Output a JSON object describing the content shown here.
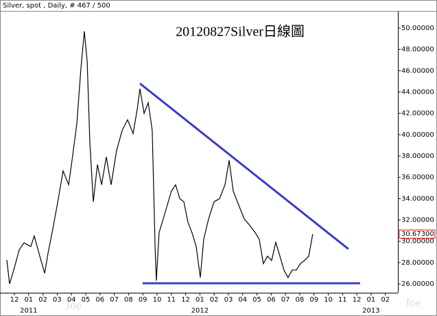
{
  "chart_data": {
    "type": "line",
    "header": "Silver, spot , Daily, # 467 / 500",
    "title": "20120827Silver日線圖",
    "watermark": "Joe",
    "last_label": "30.67300",
    "year_labels": [
      {
        "value": 1,
        "label": "2011"
      },
      {
        "value": 13,
        "label": "2012"
      },
      {
        "value": 25,
        "label": "2013"
      }
    ],
    "x": [
      -0.53,
      -0.34,
      -0.05,
      0.34,
      0.67,
      1.15,
      1.39,
      1.78,
      2.12,
      2.36,
      2.74,
      3.08,
      3.41,
      3.8,
      4.04,
      4.38,
      4.66,
      4.9,
      5.1,
      5.29,
      5.53,
      5.82,
      6.11,
      6.44,
      6.78,
      7.16,
      7.55,
      7.93,
      8.32,
      8.61,
      8.8,
      9.09,
      9.38,
      9.66,
      9.86,
      9.95,
      10.14,
      10.43,
      10.72,
      11.0,
      11.3,
      11.59,
      11.88,
      12.16,
      12.45,
      12.74,
      13.03,
      13.27,
      13.61,
      13.99,
      14.38,
      14.76,
      15.05,
      15.34,
      15.72,
      16.11,
      16.49,
      16.88,
      17.16,
      17.45,
      17.74,
      18.03,
      18.32,
      18.61,
      18.89,
      19.18,
      19.47,
      19.76,
      20.05,
      20.34,
      20.63,
      20.91
    ],
    "series": [
      {
        "color": "#000000",
        "values": [
          28.25,
          26.0,
          27.3,
          29.2,
          29.85,
          29.5,
          30.5,
          28.6,
          27.0,
          28.9,
          31.5,
          34.0,
          36.6,
          35.3,
          37.6,
          41.1,
          46.2,
          49.7,
          46.9,
          39.2,
          33.7,
          37.2,
          35.3,
          37.9,
          35.3,
          38.5,
          40.4,
          41.4,
          40.1,
          42.4,
          44.3,
          42.0,
          43.0,
          40.4,
          29.5,
          26.3,
          30.8,
          32.1,
          33.4,
          34.7,
          35.3,
          34.0,
          33.7,
          31.8,
          30.8,
          29.5,
          26.6,
          30.2,
          32.1,
          33.7,
          34.0,
          35.3,
          37.6,
          34.7,
          33.4,
          32.1,
          31.5,
          30.8,
          30.2,
          27.9,
          28.6,
          28.2,
          29.9,
          28.6,
          27.3,
          26.6,
          27.3,
          27.3,
          27.9,
          28.2,
          28.6,
          30.673
        ]
      }
    ],
    "trendlines": [
      {
        "color": "#3a3ac8",
        "x": [
          8.8,
          23.41
        ],
        "y": [
          44.8,
          29.27
        ]
      },
      {
        "color": "#3a3ac8",
        "x": [
          8.99,
          24.23
        ],
        "y": [
          26.06,
          26.06
        ]
      }
    ],
    "xlim": [
      -0.77,
      26.88
    ],
    "xticks": [
      {
        "value": 0,
        "label": "12"
      },
      {
        "value": 1,
        "label": "01"
      },
      {
        "value": 2,
        "label": "02"
      },
      {
        "value": 3,
        "label": "03"
      },
      {
        "value": 4,
        "label": "04"
      },
      {
        "value": 5,
        "label": "05"
      },
      {
        "value": 6,
        "label": "06"
      },
      {
        "value": 7,
        "label": "07"
      },
      {
        "value": 8,
        "label": "08"
      },
      {
        "value": 9,
        "label": "09"
      },
      {
        "value": 10,
        "label": "10"
      },
      {
        "value": 11,
        "label": "11"
      },
      {
        "value": 12,
        "label": "12"
      },
      {
        "value": 13,
        "label": "01"
      },
      {
        "value": 14,
        "label": "02"
      },
      {
        "value": 15,
        "label": "03"
      },
      {
        "value": 16,
        "label": "04"
      },
      {
        "value": 17,
        "label": "05"
      },
      {
        "value": 18,
        "label": "06"
      },
      {
        "value": 19,
        "label": "07"
      },
      {
        "value": 20,
        "label": "08"
      },
      {
        "value": 21,
        "label": "09"
      },
      {
        "value": 22,
        "label": "10"
      },
      {
        "value": 23,
        "label": "11"
      },
      {
        "value": 24,
        "label": "12"
      },
      {
        "value": 25,
        "label": "01"
      },
      {
        "value": 26,
        "label": "02"
      }
    ],
    "ylim": [
      25.17,
      51.48
    ],
    "yticks": [
      {
        "value": 26,
        "label": "26.00000"
      },
      {
        "value": 28,
        "label": "28.00000"
      },
      {
        "value": 30,
        "label": "30.00000"
      },
      {
        "value": 32,
        "label": "32.00000"
      },
      {
        "value": 34,
        "label": "34.00000"
      },
      {
        "value": 36,
        "label": "36.00000"
      },
      {
        "value": 38,
        "label": "38.00000"
      },
      {
        "value": 40,
        "label": "40.00000"
      },
      {
        "value": 42,
        "label": "42.00000"
      },
      {
        "value": 44,
        "label": "44.00000"
      },
      {
        "value": 46,
        "label": "46.00000"
      },
      {
        "value": 48,
        "label": "48.00000"
      },
      {
        "value": 50,
        "label": "50.00000"
      }
    ]
  }
}
